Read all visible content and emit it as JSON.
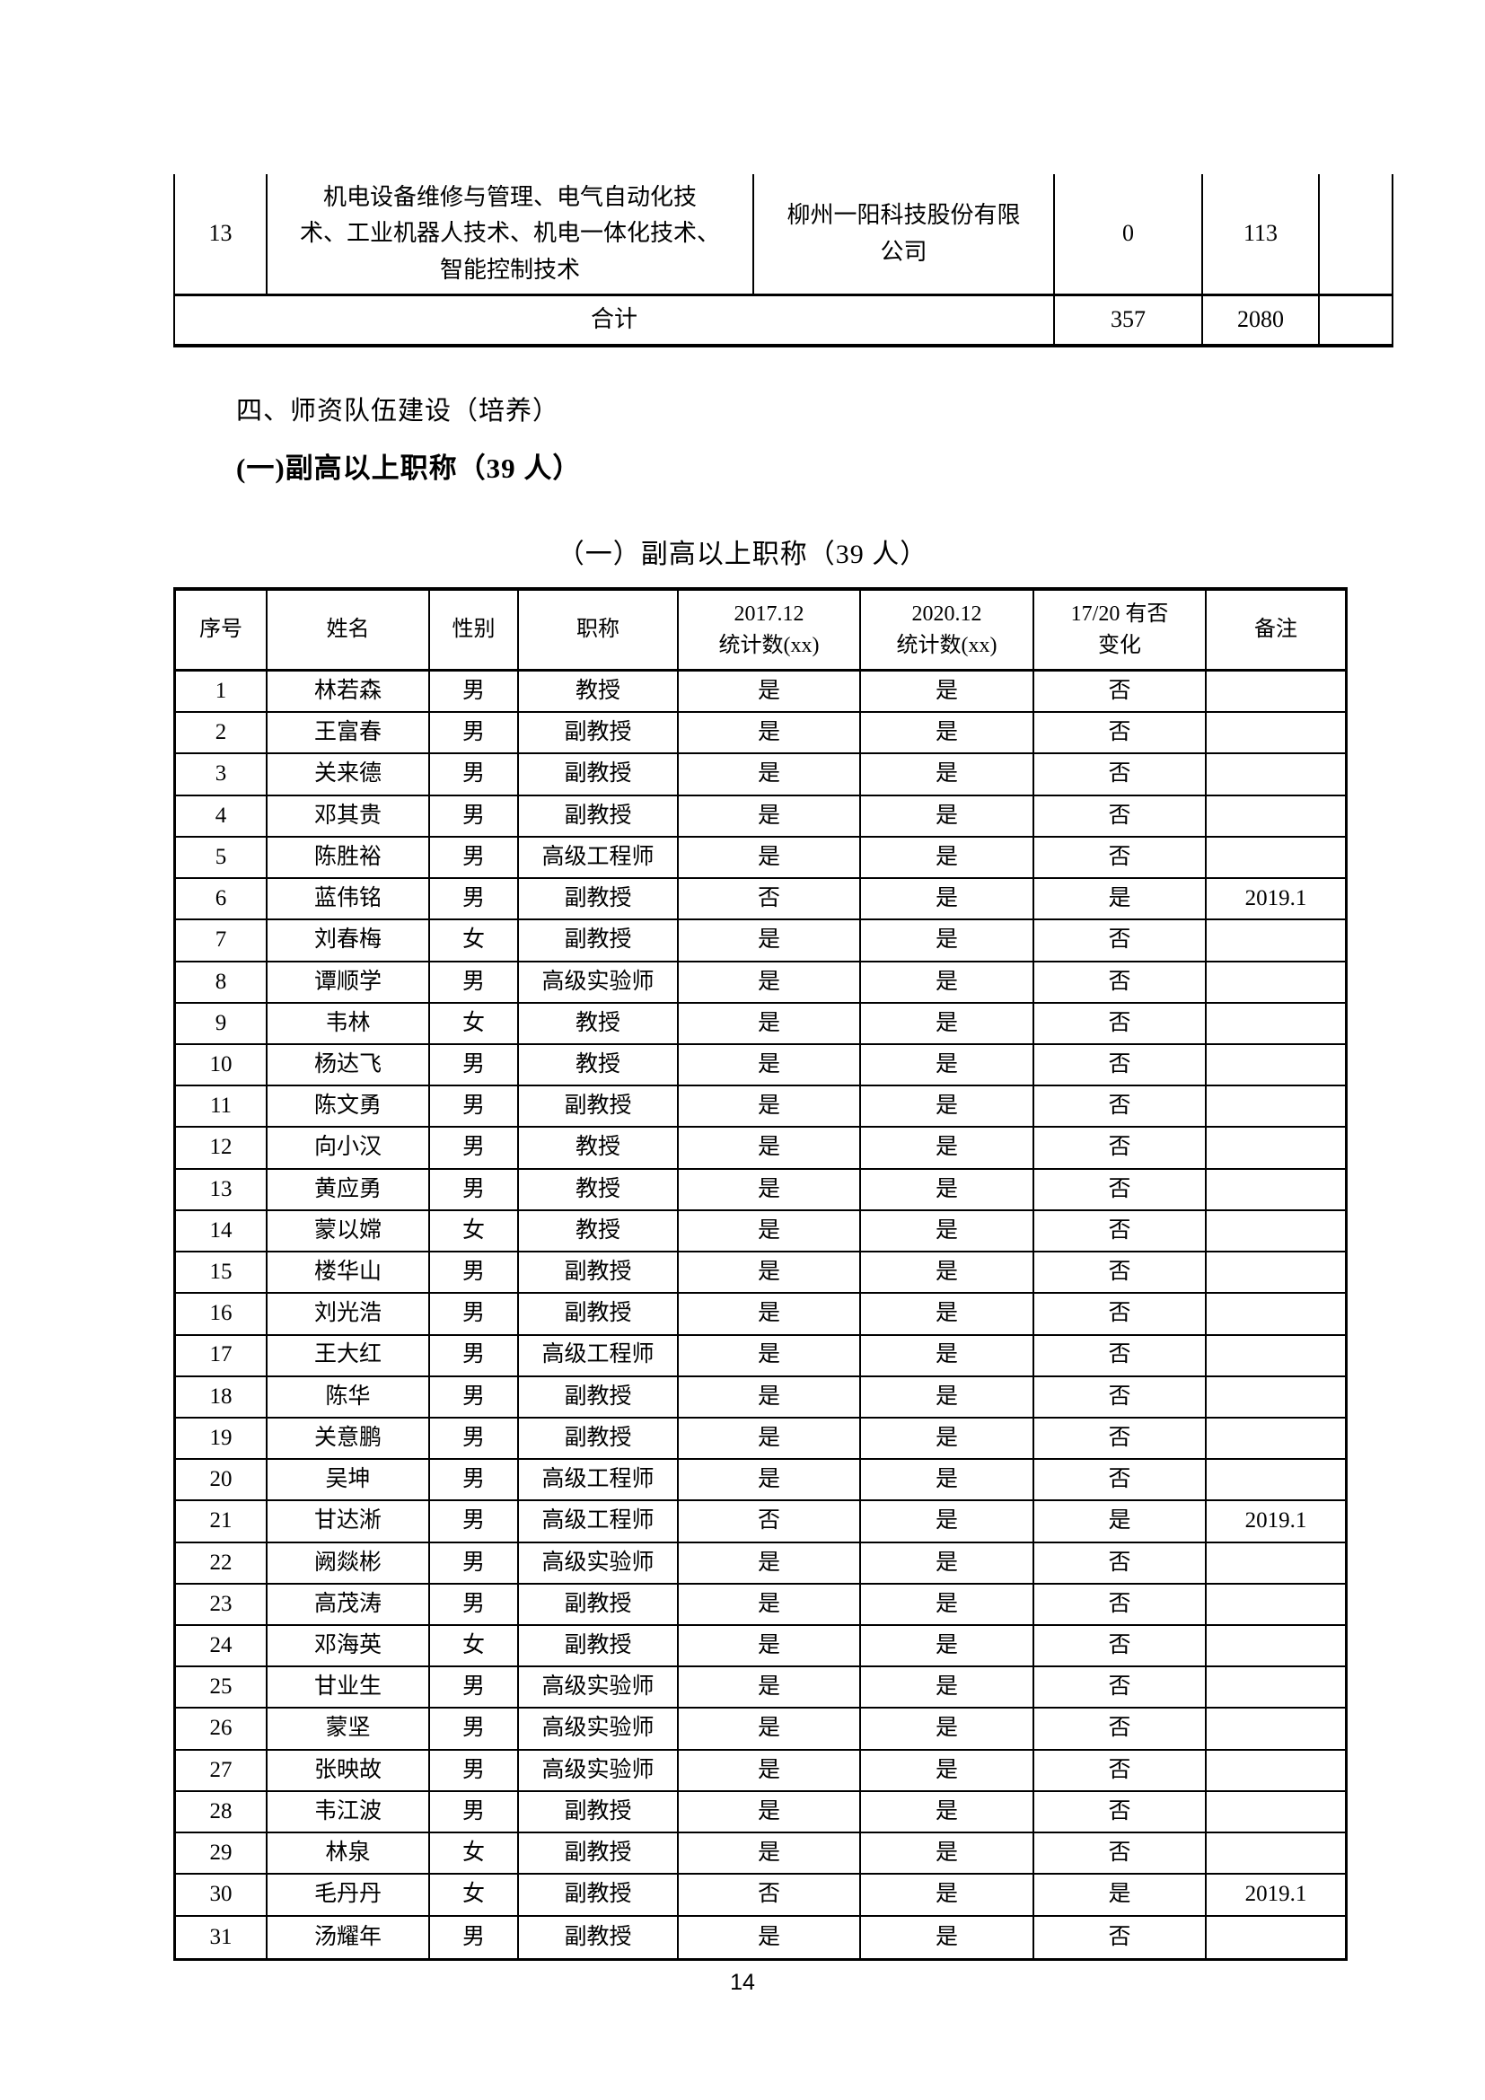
{
  "top_table": {
    "row13": {
      "no": "13",
      "majors": "机电设备维修与管理、电气自动化技\n术、工业机器人技术、机电一体化技术、\n智能控制技术",
      "company": "柳州一阳科技股份有限\n公司",
      "val1": "0",
      "val2": "113",
      "note": ""
    },
    "total": {
      "label": "合计",
      "val1": "357",
      "val2": "2080",
      "note": ""
    }
  },
  "headings": {
    "section": "四、师资队伍建设（培养）",
    "sub_bold": "(一)副高以上职称（39 人）",
    "sub_center": "（一）副高以上职称（39 人）"
  },
  "roster": {
    "headers": [
      "序号",
      "姓名",
      "性别",
      "职称",
      "2017.12\n统计数(xx)",
      "2020.12\n统计数(xx)",
      "17/20 有否\n变化",
      "备注"
    ],
    "rows": [
      [
        "1",
        "林若森",
        "男",
        "教授",
        "是",
        "是",
        "否",
        ""
      ],
      [
        "2",
        "王富春",
        "男",
        "副教授",
        "是",
        "是",
        "否",
        ""
      ],
      [
        "3",
        "关来德",
        "男",
        "副教授",
        "是",
        "是",
        "否",
        ""
      ],
      [
        "4",
        "邓其贵",
        "男",
        "副教授",
        "是",
        "是",
        "否",
        ""
      ],
      [
        "5",
        "陈胜裕",
        "男",
        "高级工程师",
        "是",
        "是",
        "否",
        ""
      ],
      [
        "6",
        "蓝伟铭",
        "男",
        "副教授",
        "否",
        "是",
        "是",
        "2019.1"
      ],
      [
        "7",
        "刘春梅",
        "女",
        "副教授",
        "是",
        "是",
        "否",
        ""
      ],
      [
        "8",
        "谭顺学",
        "男",
        "高级实验师",
        "是",
        "是",
        "否",
        ""
      ],
      [
        "9",
        "韦林",
        "女",
        "教授",
        "是",
        "是",
        "否",
        ""
      ],
      [
        "10",
        "杨达飞",
        "男",
        "教授",
        "是",
        "是",
        "否",
        ""
      ],
      [
        "11",
        "陈文勇",
        "男",
        "副教授",
        "是",
        "是",
        "否",
        ""
      ],
      [
        "12",
        "向小汉",
        "男",
        "教授",
        "是",
        "是",
        "否",
        ""
      ],
      [
        "13",
        "黄应勇",
        "男",
        "教授",
        "是",
        "是",
        "否",
        ""
      ],
      [
        "14",
        "蒙以嫦",
        "女",
        "教授",
        "是",
        "是",
        "否",
        ""
      ],
      [
        "15",
        "楼华山",
        "男",
        "副教授",
        "是",
        "是",
        "否",
        ""
      ],
      [
        "16",
        "刘光浩",
        "男",
        "副教授",
        "是",
        "是",
        "否",
        ""
      ],
      [
        "17",
        "王大红",
        "男",
        "高级工程师",
        "是",
        "是",
        "否",
        ""
      ],
      [
        "18",
        "陈华",
        "男",
        "副教授",
        "是",
        "是",
        "否",
        ""
      ],
      [
        "19",
        "关意鹏",
        "男",
        "副教授",
        "是",
        "是",
        "否",
        ""
      ],
      [
        "20",
        "吴坤",
        "男",
        "高级工程师",
        "是",
        "是",
        "否",
        ""
      ],
      [
        "21",
        "甘达淅",
        "男",
        "高级工程师",
        "否",
        "是",
        "是",
        "2019.1"
      ],
      [
        "22",
        "阙燚彬",
        "男",
        "高级实验师",
        "是",
        "是",
        "否",
        ""
      ],
      [
        "23",
        "高茂涛",
        "男",
        "副教授",
        "是",
        "是",
        "否",
        ""
      ],
      [
        "24",
        "邓海英",
        "女",
        "副教授",
        "是",
        "是",
        "否",
        ""
      ],
      [
        "25",
        "甘业生",
        "男",
        "高级实验师",
        "是",
        "是",
        "否",
        ""
      ],
      [
        "26",
        "蒙坚",
        "男",
        "高级实验师",
        "是",
        "是",
        "否",
        ""
      ],
      [
        "27",
        "张映故",
        "男",
        "高级实验师",
        "是",
        "是",
        "否",
        ""
      ],
      [
        "28",
        "韦江波",
        "男",
        "副教授",
        "是",
        "是",
        "否",
        ""
      ],
      [
        "29",
        "林泉",
        "女",
        "副教授",
        "是",
        "是",
        "否",
        ""
      ],
      [
        "30",
        "毛丹丹",
        "女",
        "副教授",
        "否",
        "是",
        "是",
        "2019.1"
      ],
      [
        "31",
        "汤耀年",
        "男",
        "副教授",
        "是",
        "是",
        "否",
        ""
      ]
    ]
  },
  "page": {
    "number": "14"
  }
}
